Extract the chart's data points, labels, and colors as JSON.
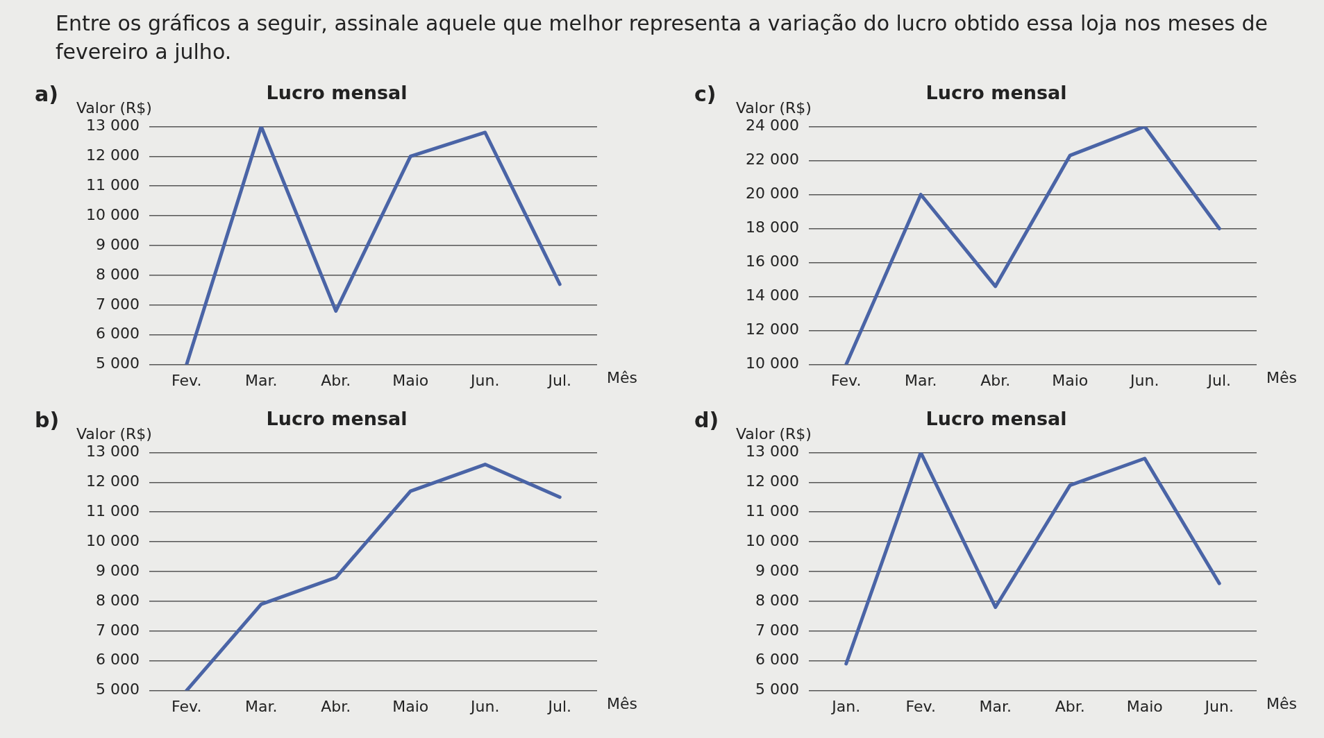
{
  "chart_data": [
    {
      "type": "line",
      "title": "Lucro mensal",
      "xlabel": "Mês",
      "ylabel": "Valor (R$)",
      "annotations": [
        "Entre os gráficos a seguir, assinale aquele que melhor representa a variação do lucro obtido essa loja nos meses de fevereiro a julho.",
        "a)"
      ],
      "categories": [
        "Fev.",
        "Mar.",
        "Abr.",
        "Maio",
        "Jun.",
        "Jul."
      ],
      "values": [
        5000,
        13000,
        6800,
        12000,
        12800,
        7700
      ],
      "color": "#4a64a6",
      "ylim": [
        5000,
        13000
      ],
      "yticks": [
        {
          "value": 5000,
          "label": "5 000"
        },
        {
          "value": 6000,
          "label": "6 000"
        },
        {
          "value": 7000,
          "label": "7 000"
        },
        {
          "value": 8000,
          "label": "8 000"
        },
        {
          "value": 9000,
          "label": "9 000"
        },
        {
          "value": 10000,
          "label": "10 000"
        },
        {
          "value": 11000,
          "label": "11 000"
        },
        {
          "value": 12000,
          "label": "12 000"
        },
        {
          "value": 13000,
          "label": "13 000"
        }
      ],
      "grid": "y",
      "legend": false
    },
    {
      "type": "line",
      "title": "Lucro mensal",
      "xlabel": "Mês",
      "ylabel": "Valor (R$)",
      "annotations": [
        "c)"
      ],
      "categories": [
        "Fev.",
        "Mar.",
        "Abr.",
        "Maio",
        "Jun.",
        "Jul."
      ],
      "values": [
        10000,
        20000,
        14600,
        22300,
        24000,
        18000
      ],
      "color": "#4a64a6",
      "ylim": [
        10000,
        24000
      ],
      "yticks": [
        {
          "value": 10000,
          "label": "10 000"
        },
        {
          "value": 12000,
          "label": "12 000"
        },
        {
          "value": 14000,
          "label": "14 000"
        },
        {
          "value": 16000,
          "label": "16 000"
        },
        {
          "value": 18000,
          "label": "18 000"
        },
        {
          "value": 20000,
          "label": "20 000"
        },
        {
          "value": 22000,
          "label": "22 000"
        },
        {
          "value": 24000,
          "label": "24 000"
        }
      ],
      "grid": "y",
      "legend": false
    },
    {
      "type": "line",
      "title": "Lucro mensal",
      "xlabel": "Mês",
      "ylabel": "Valor (R$)",
      "annotations": [
        "b)"
      ],
      "categories": [
        "Fev.",
        "Mar.",
        "Abr.",
        "Maio",
        "Jun.",
        "Jul."
      ],
      "values": [
        5000,
        7900,
        8800,
        11700,
        12600,
        11500
      ],
      "color": "#4a64a6",
      "ylim": [
        5000,
        13000
      ],
      "yticks": [
        {
          "value": 5000,
          "label": "5 000"
        },
        {
          "value": 6000,
          "label": "6 000"
        },
        {
          "value": 7000,
          "label": "7 000"
        },
        {
          "value": 8000,
          "label": "8 000"
        },
        {
          "value": 9000,
          "label": "9 000"
        },
        {
          "value": 10000,
          "label": "10 000"
        },
        {
          "value": 11000,
          "label": "11 000"
        },
        {
          "value": 12000,
          "label": "12 000"
        },
        {
          "value": 13000,
          "label": "13 000"
        }
      ],
      "grid": "y",
      "legend": false
    },
    {
      "type": "line",
      "title": "Lucro mensal",
      "xlabel": "Mês",
      "ylabel": "Valor (R$)",
      "annotations": [
        "d)"
      ],
      "categories": [
        "Jan.",
        "Fev.",
        "Mar.",
        "Abr.",
        "Maio",
        "Jun."
      ],
      "values": [
        5900,
        13000,
        7800,
        11900,
        12800,
        8600
      ],
      "color": "#4a64a6",
      "ylim": [
        5000,
        13000
      ],
      "yticks": [
        {
          "value": 5000,
          "label": "5 000"
        },
        {
          "value": 6000,
          "label": "6 000"
        },
        {
          "value": 7000,
          "label": "7 000"
        },
        {
          "value": 8000,
          "label": "8 000"
        },
        {
          "value": 9000,
          "label": "9 000"
        },
        {
          "value": 10000,
          "label": "10 000"
        },
        {
          "value": 11000,
          "label": "11 000"
        },
        {
          "value": 12000,
          "label": "12 000"
        },
        {
          "value": 13000,
          "label": "13 000"
        }
      ],
      "grid": "y",
      "legend": false
    }
  ]
}
